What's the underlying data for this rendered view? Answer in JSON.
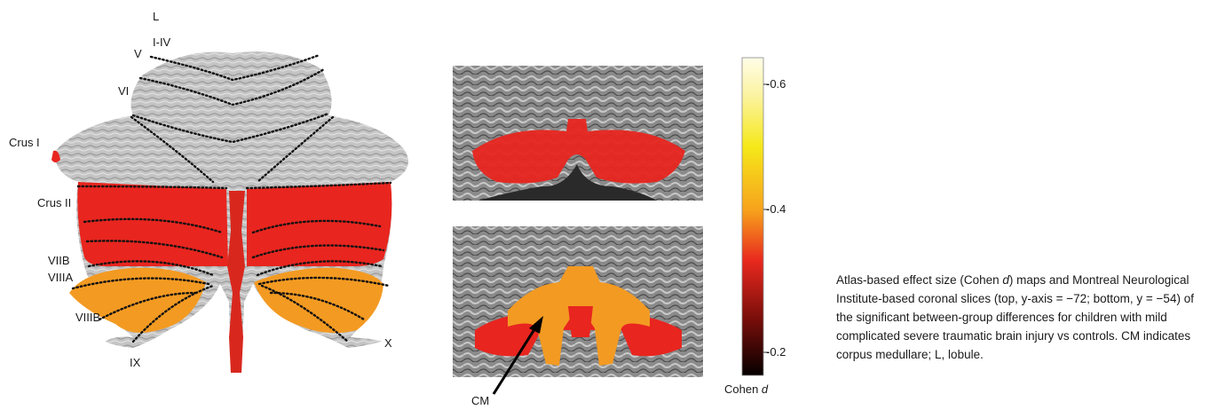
{
  "flatmap_labels": {
    "L": "L",
    "I_IV": "I-IV",
    "V": "V",
    "VI": "VI",
    "CrusI": "Crus I",
    "CrusII": "Crus II",
    "VIIB": "VIIB",
    "VIIIA": "VIIIA",
    "VIIIB": "VIIIB",
    "IX": "IX",
    "X": "X"
  },
  "coronal": {
    "cm_label": "CM"
  },
  "colorbar": {
    "title_prefix": "Cohen ",
    "title_var": "d",
    "ticks": [
      "-0.6",
      "-0.4",
      "-0.2"
    ],
    "colors": {
      "top": "#fffde8",
      "upper": "#f5e81a",
      "mid": "#f7a21c",
      "lower": "#e8281e",
      "bottom": "#050000"
    }
  },
  "caption": {
    "p1": "Atlas-based effect size (Cohen ",
    "var": "d",
    "p2": ") maps and Montreal Neurological Institute-based coronal slices (top, y-axis = −72; bottom, y = −54) of the significant between-group differences for children with mild complicated severe traumatic brain injury vs controls. CM indicates corpus medullare; L, lobule."
  },
  "colors": {
    "red": "#e8251f",
    "orange": "#f39a22",
    "yellow_orange": "#fbb615",
    "gray": "#b9b9b9"
  }
}
